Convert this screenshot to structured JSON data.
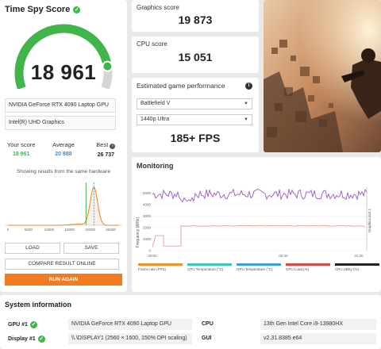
{
  "time_spy": {
    "title": "Time Spy Score",
    "score": "18 961",
    "gauge_fraction": 0.87,
    "gpu": "NVIDIA GeForce RTX 4090 Laptop GPU",
    "igpu": "Intel(R) UHD Graphics",
    "your_score_label": "Your score",
    "your_score": "18 961",
    "average_label": "Average",
    "average": "20 888",
    "best_label": "Best",
    "best": "26 737",
    "same_hw_note": "Showing results from the same hardware",
    "dist_ticks": [
      "0",
      "5000",
      "10000",
      "15000",
      "20000",
      "25000"
    ],
    "load_label": "LOAD",
    "save_label": "SAVE",
    "compare_label": "COMPARE RESULT ONLINE",
    "run_again_label": "RUN AGAIN"
  },
  "graphics": {
    "label": "Graphics score",
    "value": "19 873"
  },
  "cpu": {
    "label": "CPU score",
    "value": "15 051"
  },
  "game_perf": {
    "label": "Estimated game performance",
    "game": "Battlefield V",
    "preset": "1440p Ultra",
    "fps": "185+ FPS"
  },
  "monitoring": {
    "title": "Monitoring",
    "y_label": "Frequency (MHz)",
    "y_ticks": [
      "5000",
      "4000",
      "3000",
      "2000",
      "1000",
      "0"
    ],
    "x_ticks": [
      "00:00",
      "00:40",
      "01:20"
    ],
    "right_label": "Graphics test 1",
    "legend": [
      {
        "label": "Frame rate (FPS)",
        "color": "#f0922a"
      },
      {
        "label": "CPU Temperature (°C)",
        "color": "#3cc8b4"
      },
      {
        "label": "GPU Temperature (°C)",
        "color": "#3aa0d8"
      },
      {
        "label": "GPU Load (%)",
        "color": "#d84a4a"
      },
      {
        "label": "CPU Utility (%)",
        "color": "#222222"
      }
    ]
  },
  "sysinfo": {
    "title": "System information",
    "gpu_label": "GPU #1",
    "gpu_value": "NVIDIA GeForce RTX 4090 Laptop GPU",
    "display_label": "Display #1",
    "display_value": "\\\\.\\DISPLAY1 (2560 × 1600, 150% DPI scaling)",
    "cpu_label": "CPU",
    "cpu_value": "13th Gen Intel Core i9-13980HX",
    "gui_label": "GUI",
    "gui_value": "v2.31.8385 e64"
  },
  "colors": {
    "accent_green": "#3fb54a",
    "average_blue": "#3a8fd8",
    "run_orange": "#f47a20",
    "cpu_line": "#9b59c8",
    "gpu_line": "#e89a9a"
  }
}
